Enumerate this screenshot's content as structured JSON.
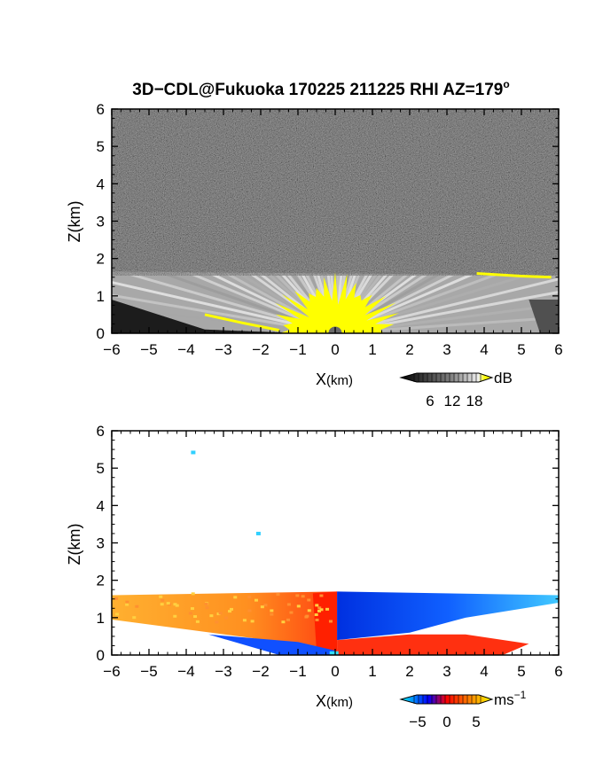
{
  "chart_data": [
    {
      "type": "heatmap",
      "panel": "reflectivity",
      "title": "3D−CDL@Fukuoka 170225 211225 RHI AZ=179",
      "title_degree": "o",
      "xlabel": "X",
      "xlabel_unit": "(km)",
      "ylabel": "Z(km)",
      "xlim": [
        -6,
        6
      ],
      "ylim": [
        0,
        6
      ],
      "x_ticks": [
        "−6",
        "−5",
        "−4",
        "−3",
        "−2",
        "−1",
        "0",
        "1",
        "2",
        "3",
        "4",
        "5",
        "6"
      ],
      "y_ticks": [
        "0",
        "1",
        "2",
        "3",
        "4",
        "5",
        "6"
      ],
      "colorbar": {
        "unit": "dB",
        "ticks": [
          "6",
          "12",
          "18"
        ],
        "range": [
          0,
          21
        ],
        "colors": [
          "#000000",
          "#ffffff",
          "#ffff00"
        ]
      },
      "features": {
        "background": "noise",
        "boundary_layer_top_km": 1.65,
        "saturated_cone_top_km": 1.3,
        "upper_layer_x_km": [
          3.8,
          6
        ],
        "upper_layer_z_km": 1.55
      }
    },
    {
      "type": "heatmap",
      "panel": "doppler_velocity",
      "xlabel": "X",
      "xlabel_unit": "(km)",
      "ylabel": "Z(km)",
      "xlim": [
        -6,
        6
      ],
      "ylim": [
        0,
        6
      ],
      "x_ticks": [
        "−6",
        "−5",
        "−4",
        "−3",
        "−2",
        "−1",
        "0",
        "1",
        "2",
        "3",
        "4",
        "5",
        "6"
      ],
      "y_ticks": [
        "0",
        "1",
        "2",
        "3",
        "4",
        "5",
        "6"
      ],
      "colorbar": {
        "unit": "ms",
        "unit_exp": "−1",
        "ticks": [
          "−5",
          "0",
          "5"
        ],
        "range": [
          -7,
          7
        ],
        "colors": [
          "#00ffff",
          "#0000ff",
          "#ff0000",
          "#ffff00"
        ]
      },
      "features": {
        "boundary_layer_top_km": 1.7,
        "negative_side_velocity_ms": 5,
        "positive_side_velocity_ms": -4,
        "isolated_points": [
          {
            "x": -3.8,
            "z": 5.42
          },
          {
            "x": -2.05,
            "z": 3.25
          }
        ]
      }
    }
  ]
}
